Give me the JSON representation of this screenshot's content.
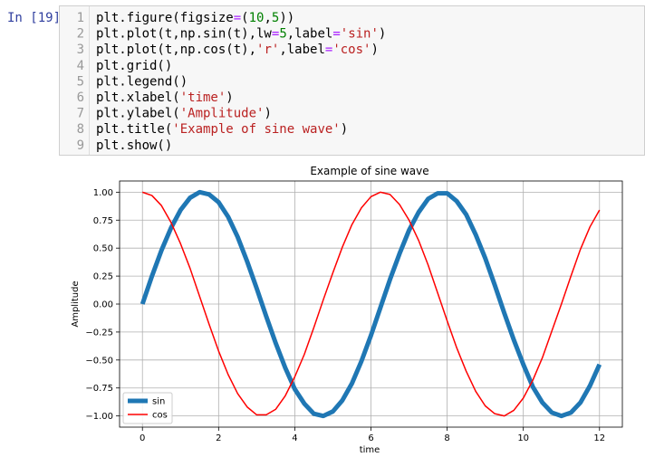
{
  "cell": {
    "prompt": "In [19]:",
    "line_numbers": [
      1,
      2,
      3,
      4,
      5,
      6,
      7,
      8,
      9
    ],
    "lines": [
      [
        {
          "text": "plt.figure(figsize",
          "color": "#000000"
        },
        {
          "text": "=",
          "color": "#aa22ff"
        },
        {
          "text": "(",
          "color": "#000000"
        },
        {
          "text": "10",
          "color": "#008000"
        },
        {
          "text": ",",
          "color": "#000000"
        },
        {
          "text": "5",
          "color": "#008000"
        },
        {
          "text": "))",
          "color": "#000000"
        }
      ],
      [
        {
          "text": "plt.plot(t,np.sin(t),lw",
          "color": "#000000"
        },
        {
          "text": "=",
          "color": "#aa22ff"
        },
        {
          "text": "5",
          "color": "#008000"
        },
        {
          "text": ",label",
          "color": "#000000"
        },
        {
          "text": "=",
          "color": "#aa22ff"
        },
        {
          "text": "'sin'",
          "color": "#ba2121"
        },
        {
          "text": ")",
          "color": "#000000"
        }
      ],
      [
        {
          "text": "plt.plot(t,np.cos(t),",
          "color": "#000000"
        },
        {
          "text": "'r'",
          "color": "#ba2121"
        },
        {
          "text": ",label",
          "color": "#000000"
        },
        {
          "text": "=",
          "color": "#aa22ff"
        },
        {
          "text": "'cos'",
          "color": "#ba2121"
        },
        {
          "text": ")",
          "color": "#000000"
        }
      ],
      [
        {
          "text": "plt.grid()",
          "color": "#000000"
        }
      ],
      [
        {
          "text": "plt.legend()",
          "color": "#000000"
        }
      ],
      [
        {
          "text": "plt.xlabel(",
          "color": "#000000"
        },
        {
          "text": "'time'",
          "color": "#ba2121"
        },
        {
          "text": ")",
          "color": "#000000"
        }
      ],
      [
        {
          "text": "plt.ylabel(",
          "color": "#000000"
        },
        {
          "text": "'Amplitude'",
          "color": "#ba2121"
        },
        {
          "text": ")",
          "color": "#000000"
        }
      ],
      [
        {
          "text": "plt.title(",
          "color": "#000000"
        },
        {
          "text": "'Example of sine wave'",
          "color": "#ba2121"
        },
        {
          "text": ")",
          "color": "#000000"
        }
      ],
      [
        {
          "text": "plt.show()",
          "color": "#000000"
        }
      ]
    ]
  },
  "chart_data": {
    "type": "line",
    "title": "Example of sine wave",
    "x_label": "time",
    "y_label": "Amplitude",
    "x": [
      0,
      0.25,
      0.5,
      0.75,
      1,
      1.25,
      1.5,
      1.75,
      2,
      2.25,
      2.5,
      2.75,
      3,
      3.25,
      3.5,
      3.75,
      4,
      4.25,
      4.5,
      4.75,
      5,
      5.25,
      5.5,
      5.75,
      6,
      6.25,
      6.5,
      6.75,
      7,
      7.25,
      7.5,
      7.75,
      8,
      8.25,
      8.5,
      8.75,
      9,
      9.25,
      9.5,
      9.75,
      10,
      10.25,
      10.5,
      10.75,
      11,
      11.25,
      11.5,
      11.75,
      12
    ],
    "series": [
      {
        "name": "sin",
        "color": "#1f77b4",
        "line_width": 5,
        "values": [
          0,
          0.25,
          0.48,
          0.68,
          0.84,
          0.95,
          1.0,
          0.98,
          0.91,
          0.78,
          0.6,
          0.38,
          0.14,
          -0.11,
          -0.35,
          -0.57,
          -0.76,
          -0.89,
          -0.98,
          -1.0,
          -0.96,
          -0.86,
          -0.71,
          -0.51,
          -0.28,
          -0.03,
          0.22,
          0.45,
          0.66,
          0.82,
          0.94,
          0.99,
          0.99,
          0.92,
          0.8,
          0.62,
          0.41,
          0.17,
          -0.08,
          -0.32,
          -0.54,
          -0.74,
          -0.88,
          -0.97,
          -1.0,
          -0.97,
          -0.88,
          -0.73,
          -0.54
        ]
      },
      {
        "name": "cos",
        "color": "#ff0000",
        "line_width": 1.5,
        "values": [
          1.0,
          0.97,
          0.88,
          0.73,
          0.54,
          0.32,
          0.07,
          -0.18,
          -0.42,
          -0.63,
          -0.8,
          -0.92,
          -0.99,
          -0.99,
          -0.94,
          -0.82,
          -0.65,
          -0.45,
          -0.21,
          0.04,
          0.28,
          0.51,
          0.71,
          0.86,
          0.96,
          1.0,
          0.98,
          0.89,
          0.75,
          0.57,
          0.35,
          0.1,
          -0.15,
          -0.39,
          -0.6,
          -0.78,
          -0.91,
          -0.98,
          -1.0,
          -0.95,
          -0.84,
          -0.68,
          -0.48,
          -0.24,
          0.0,
          0.25,
          0.49,
          0.69,
          0.84
        ]
      }
    ],
    "xlim": [
      -0.6,
      12.6
    ],
    "ylim": [
      -1.1,
      1.1
    ],
    "xticks": [
      0,
      2,
      4,
      6,
      8,
      10,
      12
    ],
    "yticks": [
      {
        "value": -1,
        "label": "−1.00"
      },
      {
        "value": -0.75,
        "label": "−0.75"
      },
      {
        "value": -0.5,
        "label": "−0.50"
      },
      {
        "value": -0.25,
        "label": "−0.25"
      },
      {
        "value": 0,
        "label": "0.00"
      },
      {
        "value": 0.25,
        "label": "0.25"
      },
      {
        "value": 0.5,
        "label": "0.50"
      },
      {
        "value": 0.75,
        "label": "0.75"
      },
      {
        "value": 1,
        "label": "1.00"
      }
    ],
    "grid": true,
    "legend": "lower left"
  }
}
